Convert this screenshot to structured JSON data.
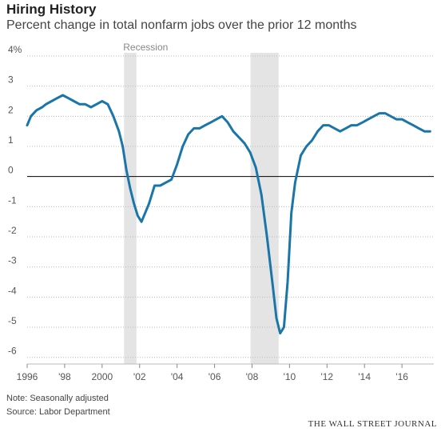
{
  "chart_data": {
    "type": "line",
    "title": "Hiring History",
    "subtitle": "Percent change in total nonfarm jobs over the prior 12 months",
    "xlabel": "",
    "ylabel": "",
    "x_tick_labels": [
      "1996",
      "'98",
      "2000",
      "'02",
      "'04",
      "'06",
      "'08",
      "'10",
      "'12",
      "'14",
      "'16"
    ],
    "y_tick_labels": [
      "4%",
      "3",
      "2",
      "1",
      "0",
      "-1",
      "-2",
      "-3",
      "-4",
      "-5",
      "-6"
    ],
    "y_ticks": [
      4,
      3,
      2,
      1,
      0,
      -1,
      -2,
      -3,
      -4,
      -5,
      -6
    ],
    "xlim": [
      1996,
      2017.7
    ],
    "ylim": [
      -6.3,
      4
    ],
    "grid": "horizontal dotted",
    "recession_label": "Recession",
    "recessions": [
      [
        2001.17,
        2001.83
      ],
      [
        2007.92,
        2009.42
      ]
    ],
    "series": [
      {
        "name": "",
        "color": "#1a76a8",
        "x": [
          1996.0,
          1996.2,
          1996.5,
          1996.8,
          1997.0,
          1997.3,
          1997.6,
          1997.9,
          1998.2,
          1998.5,
          1998.8,
          1999.1,
          1999.4,
          1999.7,
          2000.0,
          2000.3,
          2000.6,
          2000.9,
          2001.1,
          2001.3,
          2001.5,
          2001.7,
          2001.9,
          2002.1,
          2002.3,
          2002.5,
          2002.8,
          2003.1,
          2003.4,
          2003.7,
          2004.0,
          2004.3,
          2004.6,
          2004.9,
          2005.2,
          2005.5,
          2005.8,
          2006.1,
          2006.4,
          2006.7,
          2007.0,
          2007.3,
          2007.6,
          2007.9,
          2008.2,
          2008.5,
          2008.8,
          2009.1,
          2009.3,
          2009.5,
          2009.7,
          2009.9,
          2010.1,
          2010.3,
          2010.6,
          2010.9,
          2011.2,
          2011.5,
          2011.8,
          2012.1,
          2012.4,
          2012.7,
          2013.0,
          2013.3,
          2013.6,
          2013.9,
          2014.2,
          2014.5,
          2014.8,
          2015.1,
          2015.4,
          2015.7,
          2016.0,
          2016.3,
          2016.6,
          2016.9,
          2017.2,
          2017.5
        ],
        "y": [
          1.7,
          2.0,
          2.2,
          2.3,
          2.4,
          2.5,
          2.6,
          2.7,
          2.6,
          2.5,
          2.4,
          2.4,
          2.3,
          2.4,
          2.5,
          2.4,
          2.0,
          1.5,
          1.0,
          0.2,
          -0.4,
          -0.9,
          -1.3,
          -1.5,
          -1.2,
          -0.9,
          -0.3,
          -0.3,
          -0.2,
          -0.1,
          0.4,
          1.0,
          1.4,
          1.6,
          1.6,
          1.7,
          1.8,
          1.9,
          2.0,
          1.8,
          1.5,
          1.3,
          1.1,
          0.8,
          0.3,
          -0.6,
          -2.0,
          -3.6,
          -4.7,
          -5.2,
          -5.0,
          -3.5,
          -1.2,
          -0.2,
          0.7,
          1.0,
          1.2,
          1.5,
          1.7,
          1.7,
          1.6,
          1.5,
          1.6,
          1.7,
          1.7,
          1.8,
          1.9,
          2.0,
          2.1,
          2.1,
          2.0,
          1.9,
          1.9,
          1.8,
          1.7,
          1.6,
          1.5,
          1.5
        ]
      }
    ]
  },
  "notes": {
    "note": "Note: Seasonally adjusted",
    "source": "Source: Labor Department",
    "publisher": "THE WALL STREET JOURNAL"
  }
}
